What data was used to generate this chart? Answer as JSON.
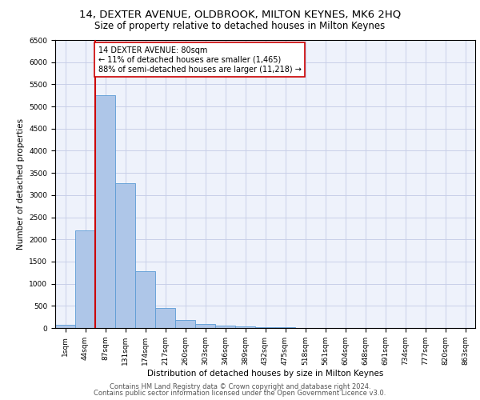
{
  "title": "14, DEXTER AVENUE, OLDBROOK, MILTON KEYNES, MK6 2HQ",
  "subtitle": "Size of property relative to detached houses in Milton Keynes",
  "xlabel": "Distribution of detached houses by size in Milton Keynes",
  "ylabel": "Number of detached properties",
  "bar_values": [
    80,
    2200,
    5250,
    3270,
    1290,
    460,
    175,
    85,
    55,
    30,
    15,
    10,
    5,
    3,
    2,
    1,
    1,
    0,
    0,
    0,
    0
  ],
  "bar_labels": [
    "1sqm",
    "44sqm",
    "87sqm",
    "131sqm",
    "174sqm",
    "217sqm",
    "260sqm",
    "303sqm",
    "346sqm",
    "389sqm",
    "432sqm",
    "475sqm",
    "518sqm",
    "561sqm",
    "604sqm",
    "648sqm",
    "691sqm",
    "734sqm",
    "777sqm",
    "820sqm",
    "863sqm"
  ],
  "bar_color": "#aec6e8",
  "bar_edge_color": "#5b9bd5",
  "property_line_x": 1.5,
  "property_line_color": "#cc0000",
  "annotation_text": "14 DEXTER AVENUE: 80sqm\n← 11% of detached houses are smaller (1,465)\n88% of semi-detached houses are larger (11,218) →",
  "annotation_box_color": "#ffffff",
  "annotation_box_edge": "#cc0000",
  "ylim": [
    0,
    6500
  ],
  "yticks": [
    0,
    500,
    1000,
    1500,
    2000,
    2500,
    3000,
    3500,
    4000,
    4500,
    5000,
    5500,
    6000,
    6500
  ],
  "footer1": "Contains HM Land Registry data © Crown copyright and database right 2024.",
  "footer2": "Contains public sector information licensed under the Open Government Licence v3.0.",
  "bg_color": "#eef2fb",
  "grid_color": "#c8cfe8",
  "title_fontsize": 9.5,
  "subtitle_fontsize": 8.5,
  "annotation_fontsize": 7.0,
  "axis_fontsize": 7.5,
  "tick_fontsize": 6.5,
  "footer_fontsize": 6.0
}
